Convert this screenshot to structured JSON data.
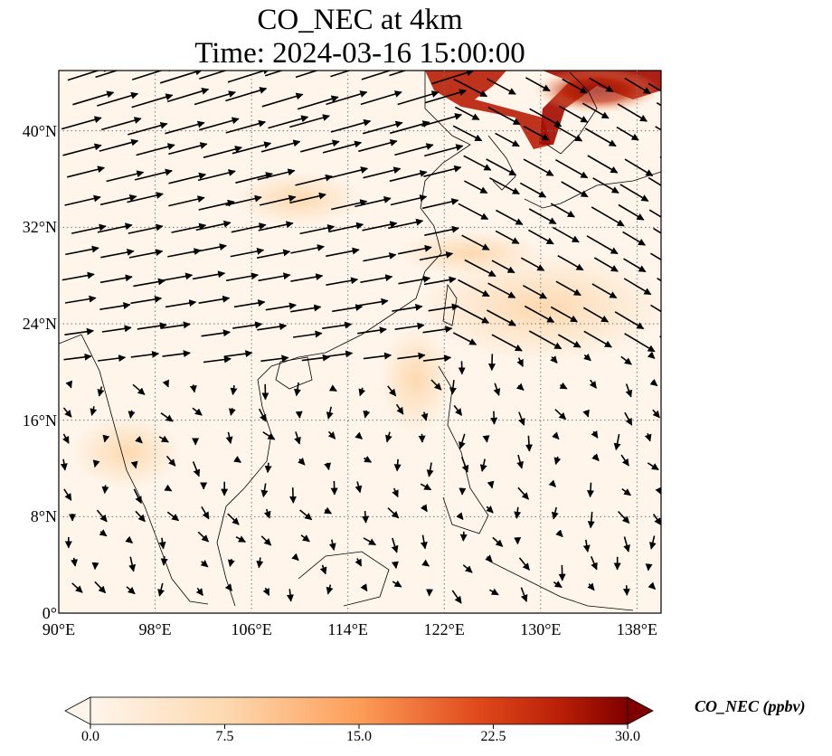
{
  "title": {
    "line1": "CO_NEC at 4km",
    "line2": "Time: 2024-03-16 15:00:00"
  },
  "map": {
    "lon_range": [
      90,
      140
    ],
    "lat_range": [
      0,
      45
    ],
    "x_ticks": [
      {
        "lon": 90,
        "label": "90°E"
      },
      {
        "lon": 98,
        "label": "98°E"
      },
      {
        "lon": 106,
        "label": "106°E"
      },
      {
        "lon": 114,
        "label": "114°E"
      },
      {
        "lon": 122,
        "label": "122°E"
      },
      {
        "lon": 130,
        "label": "130°E"
      },
      {
        "lon": 138,
        "label": "138°E"
      }
    ],
    "y_ticks": [
      {
        "lat": 0,
        "label": "0°"
      },
      {
        "lat": 8,
        "label": "8°N"
      },
      {
        "lat": 16,
        "label": "16°N"
      },
      {
        "lat": 24,
        "label": "24°N"
      },
      {
        "lat": 32,
        "label": "32°N"
      },
      {
        "lat": 40,
        "label": "40°N"
      }
    ],
    "gridlines": "dotted",
    "field_colors": {
      "low": "#fff5eb",
      "mid": "#fdbf86",
      "high": "#a30c00"
    }
  },
  "colorbar": {
    "label": "CO_NEC (ppbv)",
    "min": 0.0,
    "max": 30.0,
    "extend": "both",
    "colormap": "Oranges-Reds",
    "ticks": [
      {
        "value": 0.0,
        "label": "0.0"
      },
      {
        "value": 7.5,
        "label": "7.5"
      },
      {
        "value": 15.0,
        "label": "15.0"
      },
      {
        "value": 22.5,
        "label": "22.5"
      },
      {
        "value": 30.0,
        "label": "30.0"
      }
    ]
  }
}
